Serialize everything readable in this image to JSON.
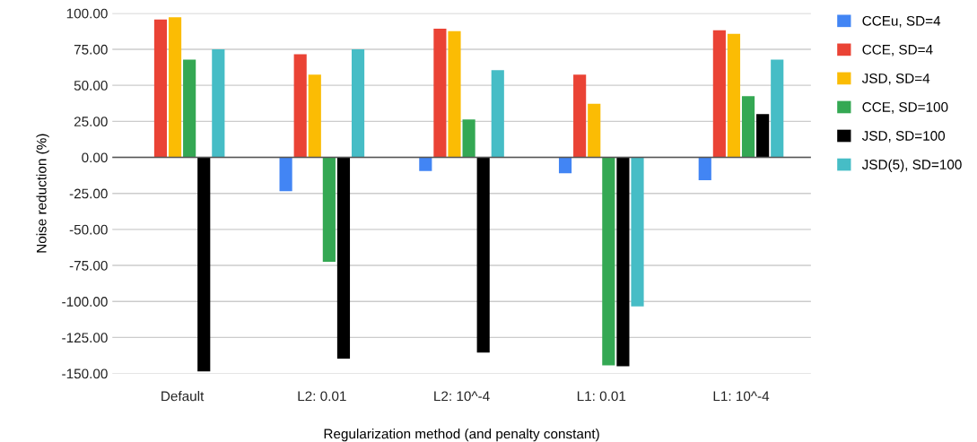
{
  "chart_data": {
    "type": "bar",
    "xlabel": "Regularization method (and penalty constant)",
    "ylabel": "Noise reduction (%)",
    "categories": [
      "Default",
      "L2: 0.01",
      "L2: 10^-4",
      "L1: 0.01",
      "L1: 10^-4"
    ],
    "series": [
      {
        "name": "CCEu, SD=4",
        "color": "#4285f4",
        "values": [
          null,
          -23.5,
          -9.5,
          -11,
          -15.8
        ]
      },
      {
        "name": "CCE, SD=4",
        "color": "#ea4335",
        "values": [
          95.6,
          71.6,
          89.3,
          57.4,
          88.2
        ]
      },
      {
        "name": "JSD, SD=4",
        "color": "#fbbc04",
        "values": [
          97.3,
          57.4,
          87.6,
          37.2,
          85.7
        ]
      },
      {
        "name": "CCE, SD=100",
        "color": "#34a853",
        "values": [
          67.9,
          -72.5,
          26.3,
          -144.3,
          42.4
        ]
      },
      {
        "name": "JSD, SD=100",
        "color": "#000000",
        "values": [
          -148.5,
          -139.7,
          -135.5,
          -145,
          30
        ]
      },
      {
        "name": "JSD(5), SD=100",
        "color": "#46bdc6",
        "values": [
          75,
          75,
          60.5,
          -103.4,
          67.9
        ]
      }
    ],
    "ylim": [
      -150,
      100
    ],
    "yticks": [
      {
        "value": -150,
        "label": "-150.00"
      },
      {
        "value": -125,
        "label": "-125.00"
      },
      {
        "value": -100,
        "label": "-100.00"
      },
      {
        "value": -75,
        "label": "-75.00"
      },
      {
        "value": -50,
        "label": "-50.00"
      },
      {
        "value": -25,
        "label": "-25.00"
      },
      {
        "value": 0,
        "label": "0.00"
      },
      {
        "value": 25,
        "label": "25.00"
      },
      {
        "value": 50,
        "label": "50.00"
      },
      {
        "value": 75,
        "label": "75.00"
      },
      {
        "value": 100,
        "label": "100.00"
      }
    ],
    "grid": "y",
    "legend": "top right"
  }
}
